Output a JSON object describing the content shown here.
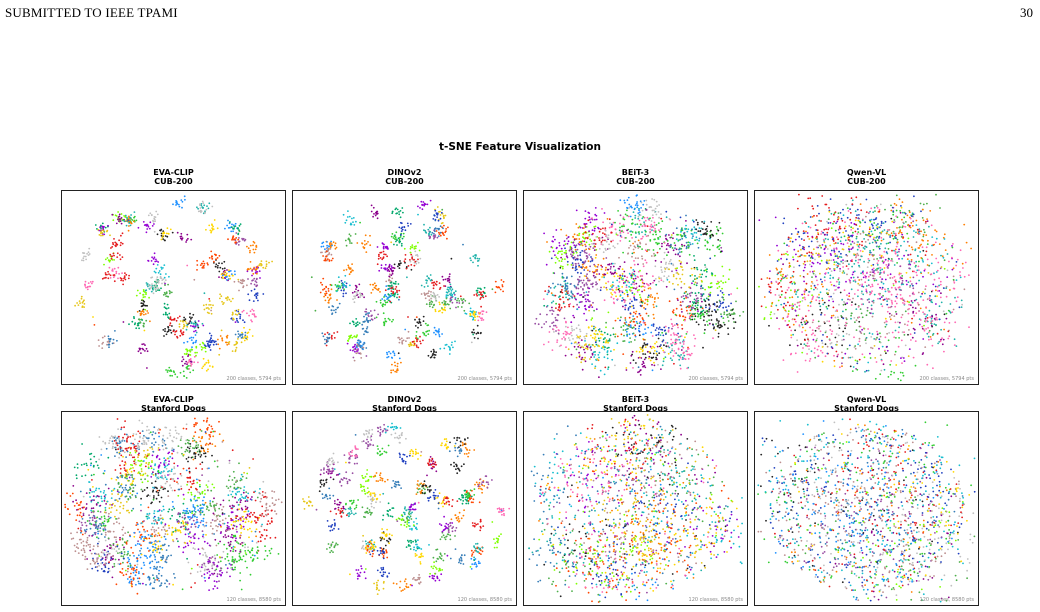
{
  "header": {
    "running_head": "SUBMITTED TO IEEE TPAMI",
    "page_number": "30"
  },
  "figure": {
    "title": "t-SNE Feature Visualization",
    "panels": [
      {
        "model": "EVA-CLIP",
        "dataset": "CUB-200",
        "footnote": "200 classes, 5794 pts"
      },
      {
        "model": "DINOv2",
        "dataset": "CUB-200",
        "footnote": "200 classes, 5794 pts"
      },
      {
        "model": "BEiT-3",
        "dataset": "CUB-200",
        "footnote": "200 classes, 5794 pts"
      },
      {
        "model": "Qwen-VL",
        "dataset": "CUB-200",
        "footnote": "200 classes, 5794 pts"
      },
      {
        "model": "EVA-CLIP",
        "dataset": "Stanford Dogs",
        "footnote": "120 classes, 8580 pts"
      },
      {
        "model": "DINOv2",
        "dataset": "Stanford Dogs",
        "footnote": "120 classes, 8580 pts"
      },
      {
        "model": "BEiT-3",
        "dataset": "Stanford Dogs",
        "footnote": "120 classes, 8580 pts"
      },
      {
        "model": "Qwen-VL",
        "dataset": "Stanford Dogs",
        "footnote": "120 classes, 8580 pts"
      }
    ]
  },
  "chart_data": [
    {
      "type": "scatter",
      "title": "EVA-CLIP CUB-200",
      "classes": 200,
      "points": 5794,
      "cluster_separation": "well-separated",
      "grid": false
    },
    {
      "type": "scatter",
      "title": "DINOv2 CUB-200",
      "classes": 200,
      "points": 5794,
      "cluster_separation": "well-separated",
      "grid": false
    },
    {
      "type": "scatter",
      "title": "BEiT-3 CUB-200",
      "classes": 200,
      "points": 5794,
      "cluster_separation": "moderate",
      "grid": false
    },
    {
      "type": "scatter",
      "title": "Qwen-VL CUB-200",
      "classes": 200,
      "points": 5794,
      "cluster_separation": "diffuse",
      "grid": false
    },
    {
      "type": "scatter",
      "title": "EVA-CLIP Stanford Dogs",
      "classes": 120,
      "points": 8580,
      "cluster_separation": "moderate",
      "grid": false
    },
    {
      "type": "scatter",
      "title": "DINOv2 Stanford Dogs",
      "classes": 120,
      "points": 8580,
      "cluster_separation": "well-separated",
      "grid": false
    },
    {
      "type": "scatter",
      "title": "BEiT-3 Stanford Dogs",
      "classes": 120,
      "points": 8580,
      "cluster_separation": "diffuse",
      "grid": false
    },
    {
      "type": "scatter",
      "title": "Qwen-VL Stanford Dogs",
      "classes": 120,
      "points": 8580,
      "cluster_separation": "very-diffuse",
      "grid": false
    }
  ],
  "palette": [
    "#e41a1c",
    "#377eb8",
    "#4daf4a",
    "#984ea3",
    "#ff7f00",
    "#e6c619",
    "#17becf",
    "#7fff00",
    "#ff4500",
    "#1f3fbf",
    "#8b008b",
    "#00a86b",
    "#ff69b4",
    "#222222",
    "#bc8f8f",
    "#9400d3",
    "#1e90ff",
    "#32cd32",
    "#ffd700",
    "#20b2aa",
    "#c0c0c0"
  ]
}
